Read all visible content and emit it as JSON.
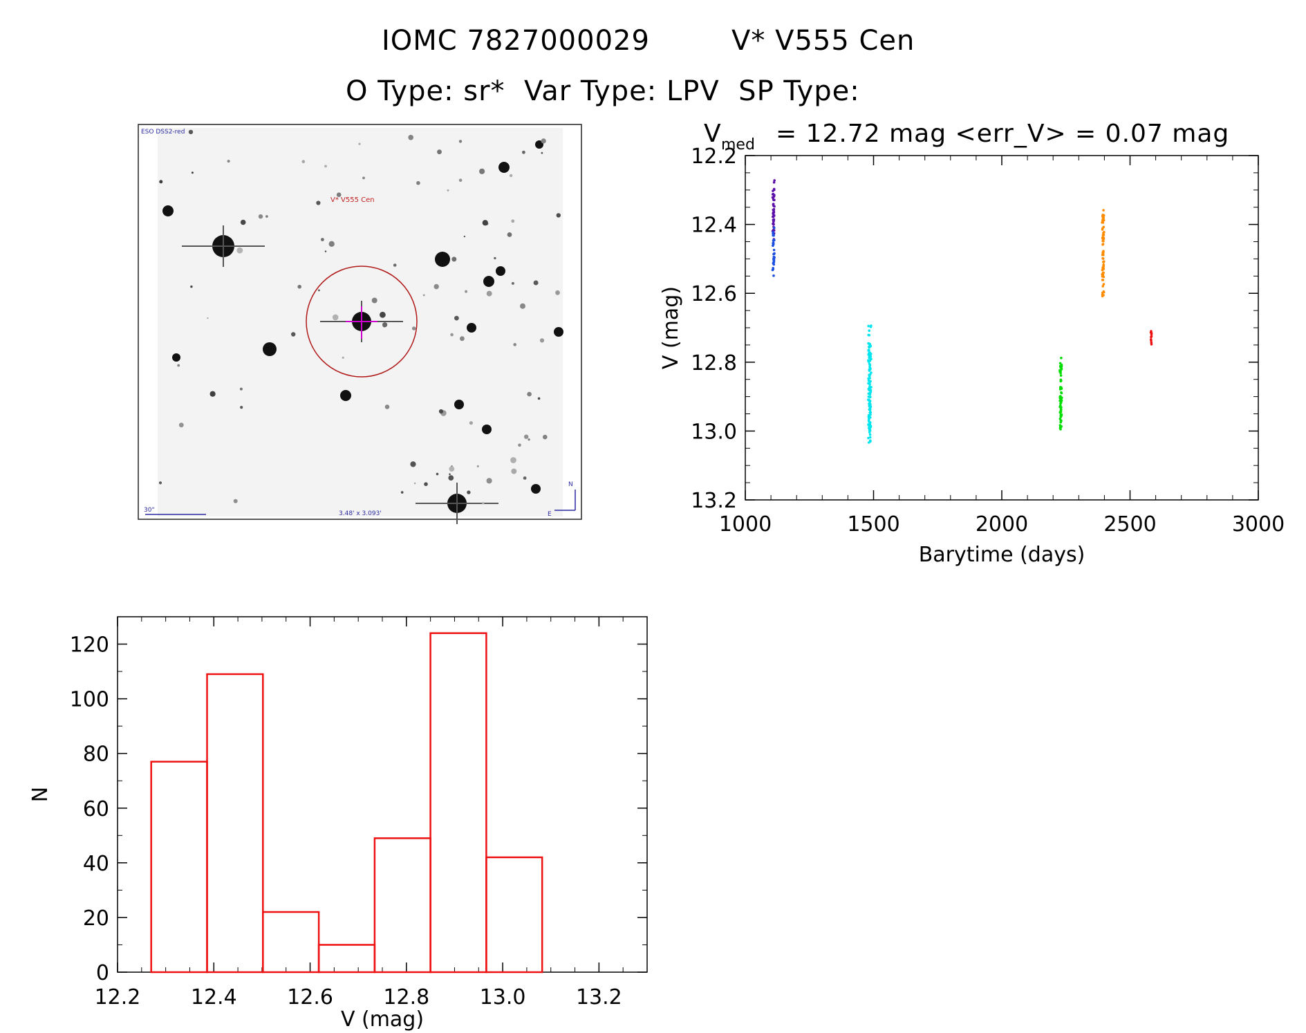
{
  "header": {
    "line1_left": "IOMC 7827000029",
    "line1_right": "V* V555 Cen",
    "line2": "O Type: sr*  Var Type: LPV  SP Type:"
  },
  "finder": {
    "survey_label": "ESO DSS2-red",
    "target_label": "V* V555 Cen",
    "scale_label": "30\"",
    "fov_label": "3.48' x 3.093'",
    "north_label": "N",
    "east_label": "E",
    "colors": {
      "target_circle": "#b01818",
      "crosshair": "#cc00cc",
      "label": "#2a2aa0"
    }
  },
  "light_curve": {
    "stats_prefix": "V",
    "stats_sub": "med",
    "stats_text": "= 12.72 mag <err_V> = 0.07 mag"
  },
  "chart_data": [
    {
      "type": "scatter",
      "xlabel": "Barytime (days)",
      "ylabel": "V (mag)",
      "xlim": [
        1000,
        3000
      ],
      "ylim": [
        13.2,
        12.2
      ],
      "y_inverted": true,
      "xticks": [
        "1000",
        "1500",
        "2000",
        "2500",
        "3000"
      ],
      "yticks": [
        "12.2",
        "12.4",
        "12.6",
        "12.8",
        "13.0",
        "13.2"
      ],
      "series": [
        {
          "color": "#5b0fa8",
          "x_center": 1110,
          "x_spread": 4,
          "y_min": 12.27,
          "y_max": 12.45,
          "n": 45
        },
        {
          "color": "#1a4fe0",
          "x_center": 1110,
          "x_spread": 4,
          "y_min": 12.38,
          "y_max": 12.56,
          "n": 30
        },
        {
          "color": "#00e5ee",
          "x_center": 1485,
          "x_spread": 6,
          "y_min": 12.69,
          "y_max": 13.05,
          "n": 130
        },
        {
          "color": "#00dd00",
          "x_center": 2230,
          "x_spread": 4,
          "y_min": 12.77,
          "y_max": 13.03,
          "n": 70
        },
        {
          "color": "#ff8c00",
          "x_center": 2395,
          "x_spread": 4,
          "y_min": 12.33,
          "y_max": 12.61,
          "n": 70
        },
        {
          "color": "#ee1111",
          "x_center": 2583,
          "x_spread": 2,
          "y_min": 12.7,
          "y_max": 12.76,
          "n": 10
        }
      ]
    },
    {
      "type": "bar",
      "xlabel": "V (mag)",
      "ylabel": "N",
      "xlim": [
        12.2,
        13.3
      ],
      "ylim": [
        0,
        130
      ],
      "xticks": [
        "12.2",
        "12.4",
        "12.6",
        "12.8",
        "13.0",
        "13.2"
      ],
      "yticks": [
        "0",
        "20",
        "40",
        "60",
        "80",
        "100",
        "120"
      ],
      "bin_edges": [
        12.27,
        12.386,
        12.502,
        12.618,
        12.734,
        12.85,
        12.966,
        13.082
      ],
      "values": [
        77,
        109,
        22,
        10,
        49,
        124,
        42
      ],
      "color": "#ee1111"
    }
  ]
}
